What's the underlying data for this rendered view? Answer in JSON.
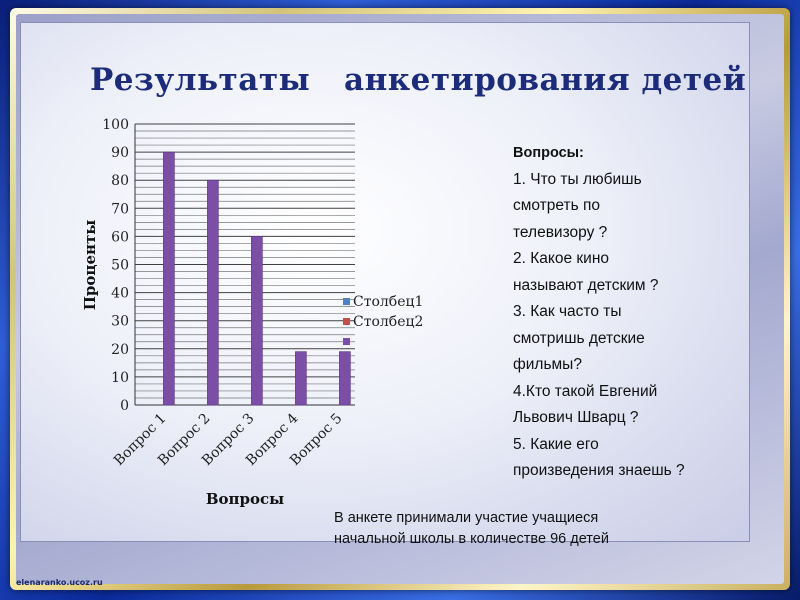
{
  "title": "Результаты   анкетирования детей",
  "chart_data": {
    "type": "bar",
    "categories": [
      "Вопрос 1",
      "Вопрос 2",
      "Вопрос 3",
      "Вопрос 4",
      "Вопрос 5"
    ],
    "series": [
      {
        "name": "Столбец1",
        "values": [
          0,
          0,
          0,
          0,
          0
        ],
        "color": "#4f81bd"
      },
      {
        "name": "Столбец2",
        "values": [
          0,
          0,
          0,
          0,
          0
        ],
        "color": "#c0504d"
      },
      {
        "name": "",
        "values": [
          90,
          80,
          60,
          19,
          19
        ],
        "color": "#7b4fa6"
      }
    ],
    "xlabel": "Вопросы",
    "ylabel": "Проценты",
    "ylim": [
      0,
      100
    ],
    "yticks": [
      0,
      10,
      20,
      30,
      40,
      50,
      60,
      70,
      80,
      90,
      100
    ],
    "grid": true,
    "legend_position": "right"
  },
  "questions": {
    "heading": "Вопросы:",
    "lines": [
      "1. Что ты любишь",
      "смотреть по",
      "телевизору ?",
      "2. Какое кино",
      "называют детским ?",
      "3. Как часто ты",
      "смотришь детские",
      "фильмы?",
      "4.Кто такой Евгений",
      "Львович Шварц ?",
      "5. Какие его",
      "произведения знаешь ?"
    ]
  },
  "footnote": {
    "line1": "В анкете принимали участие учащиеся",
    "line2": "начальной школы в количестве 96 детей"
  },
  "watermark": "elenaranko.ucoz.ru",
  "colors": {
    "title": "#1c2c7a",
    "bar": "#7b4fa6",
    "gridline": "#222222"
  }
}
